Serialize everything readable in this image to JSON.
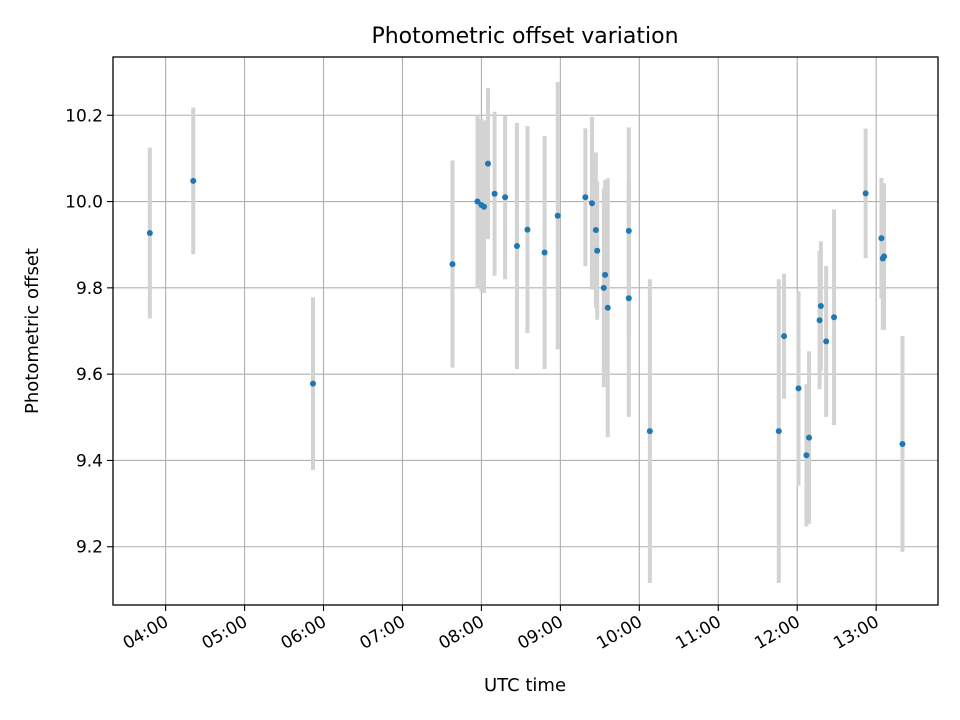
{
  "chart_data": {
    "type": "scatter",
    "title": "Photometric offset variation",
    "xlabel": "UTC time",
    "ylabel": "Photometric offset",
    "xlim": [
      "03:20",
      "13:47"
    ],
    "ylim": [
      9.065,
      10.335
    ],
    "x_ticks": [
      "04:00",
      "05:00",
      "06:00",
      "07:00",
      "08:00",
      "09:00",
      "10:00",
      "11:00",
      "12:00",
      "13:00"
    ],
    "y_ticks": [
      9.2,
      9.4,
      9.6,
      9.8,
      10.0,
      10.2
    ],
    "grid": true,
    "colors": {
      "points": "#1f77b4",
      "errorbars": "#d3d3d3",
      "grid": "#b0b0b0"
    },
    "points": [
      {
        "time": "03:48",
        "y": 9.927,
        "err": 0.198
      },
      {
        "time": "04:21",
        "y": 10.048,
        "err": 0.17
      },
      {
        "time": "05:52",
        "y": 9.578,
        "err": 0.2
      },
      {
        "time": "07:38",
        "y": 9.855,
        "err": 0.24
      },
      {
        "time": "07:57",
        "y": 10.0,
        "err": 0.2
      },
      {
        "time": "08:00",
        "y": 9.992,
        "err": 0.2
      },
      {
        "time": "08:02",
        "y": 9.988,
        "err": 0.2
      },
      {
        "time": "08:05",
        "y": 10.088,
        "err": 0.175
      },
      {
        "time": "08:10",
        "y": 10.018,
        "err": 0.19
      },
      {
        "time": "08:18",
        "y": 10.01,
        "err": 0.19
      },
      {
        "time": "08:27",
        "y": 9.897,
        "err": 0.285
      },
      {
        "time": "08:35",
        "y": 9.935,
        "err": 0.24
      },
      {
        "time": "08:48",
        "y": 9.882,
        "err": 0.27
      },
      {
        "time": "08:58",
        "y": 9.967,
        "err": 0.31
      },
      {
        "time": "09:19",
        "y": 10.01,
        "err": 0.16
      },
      {
        "time": "09:24",
        "y": 9.996,
        "err": 0.2
      },
      {
        "time": "09:27",
        "y": 9.934,
        "err": 0.18
      },
      {
        "time": "09:28",
        "y": 9.886,
        "err": 0.16
      },
      {
        "time": "09:33",
        "y": 9.8,
        "err": 0.23
      },
      {
        "time": "09:34",
        "y": 9.83,
        "err": 0.22
      },
      {
        "time": "09:36",
        "y": 9.754,
        "err": 0.3
      },
      {
        "time": "09:52",
        "y": 9.932,
        "err": 0.24
      },
      {
        "time": "09:52",
        "y": 9.776,
        "err": 0.275
      },
      {
        "time": "10:08",
        "y": 9.468,
        "err": 0.352
      },
      {
        "time": "11:46",
        "y": 9.468,
        "err": 0.352
      },
      {
        "time": "11:50",
        "y": 9.688,
        "err": 0.145
      },
      {
        "time": "12:01",
        "y": 9.567,
        "err": 0.225
      },
      {
        "time": "12:07",
        "y": 9.412,
        "err": 0.165
      },
      {
        "time": "12:09",
        "y": 9.453,
        "err": 0.2
      },
      {
        "time": "12:17",
        "y": 9.725,
        "err": 0.16
      },
      {
        "time": "12:18",
        "y": 9.758,
        "err": 0.15
      },
      {
        "time": "12:22",
        "y": 9.676,
        "err": 0.175
      },
      {
        "time": "12:28",
        "y": 9.732,
        "err": 0.25
      },
      {
        "time": "12:52",
        "y": 10.019,
        "err": 0.15
      },
      {
        "time": "13:04",
        "y": 9.915,
        "err": 0.14
      },
      {
        "time": "13:05",
        "y": 9.868,
        "err": 0.165
      },
      {
        "time": "13:06",
        "y": 9.873,
        "err": 0.17
      },
      {
        "time": "13:20",
        "y": 9.438,
        "err": 0.25
      }
    ]
  }
}
